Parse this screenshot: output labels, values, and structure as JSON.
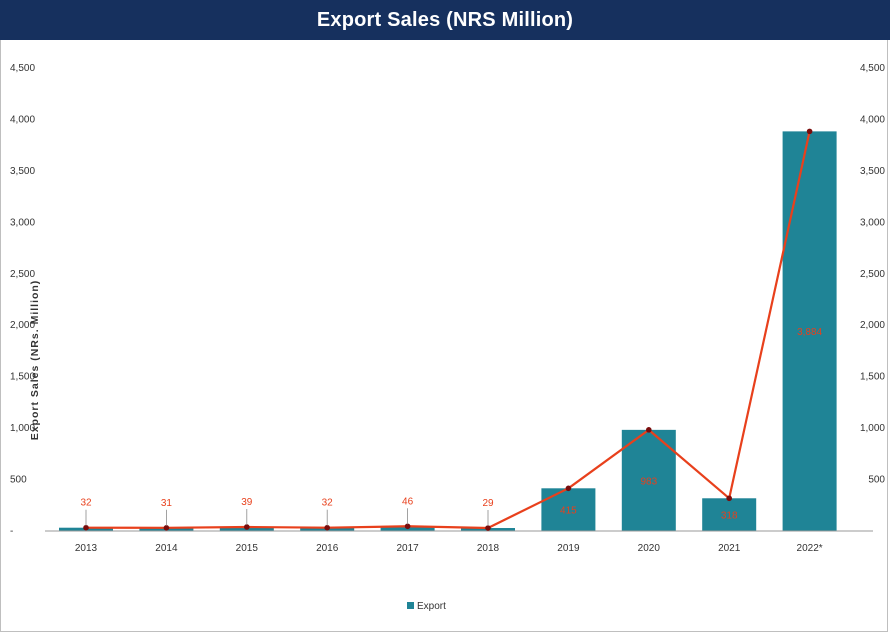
{
  "title": "Export Sales (NRS Million)",
  "colors": {
    "title_bg": "#16305e",
    "bar": "#1f8496",
    "line": "#e8401c",
    "marker": "#7a0c0c"
  },
  "chart_data": {
    "type": "bar",
    "title": "Export Sales (NRS Million)",
    "categories": [
      "2013",
      "2014",
      "2015",
      "2016",
      "2017",
      "2018",
      "2019",
      "2020",
      "2021",
      "2022*"
    ],
    "series": [
      {
        "name": "Export",
        "values": [
          32,
          31,
          39,
          32,
          46,
          29,
          415,
          983,
          318,
          3884
        ]
      }
    ],
    "overlay_line_values": [
      32,
      31,
      39,
      32,
      46,
      29,
      415,
      983,
      318,
      3884
    ],
    "data_labels": [
      "32",
      "31",
      "39",
      "32",
      "46",
      "29",
      "415",
      "983",
      "318",
      "3,884"
    ],
    "ylabel": "Export Sales (NRs. Million)",
    "xlabel": "",
    "ylim": [
      0,
      4500
    ],
    "yticks": [
      "-",
      "500",
      "1,000",
      "1,500",
      "2,000",
      "2,500",
      "3,000",
      "3,500",
      "4,000",
      "4,500"
    ],
    "secondary_yticks": [
      "500",
      "1,000",
      "1,500",
      "2,000",
      "2,500",
      "3,000",
      "3,500",
      "4,000",
      "4,500"
    ],
    "grid": false,
    "legend": "bottom-center"
  }
}
